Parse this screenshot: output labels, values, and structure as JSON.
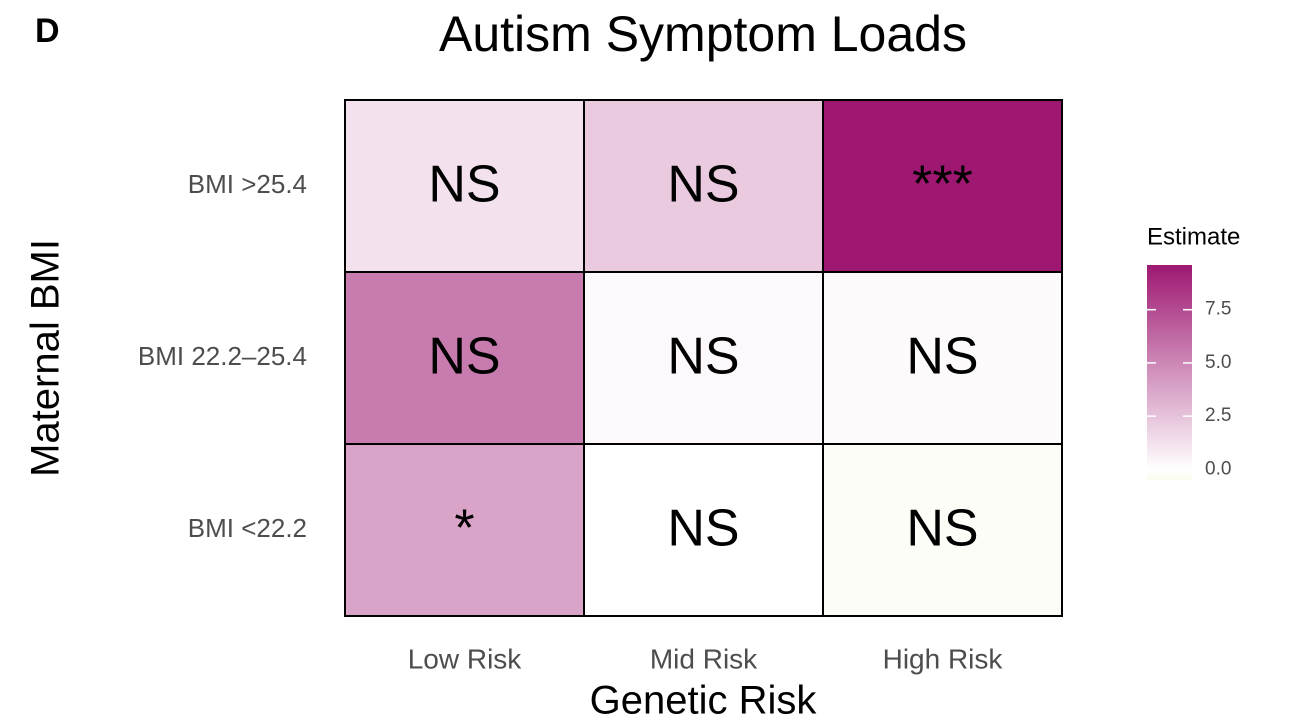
{
  "panel_label": "D",
  "chart_data": {
    "type": "heatmap",
    "title": "Autism Symptom Loads",
    "x_label": "Genetic Risk",
    "y_label": "Maternal BMI",
    "x_categories": [
      "Low Risk",
      "Mid Risk",
      "High Risk"
    ],
    "y_categories": [
      "BMI <22.2",
      "BMI 22.2–25.4",
      "BMI >25.4"
    ],
    "values": [
      [
        3.8,
        0.0,
        -0.2
      ],
      [
        5.5,
        0.3,
        0.2
      ],
      [
        1.2,
        2.2,
        9.6
      ]
    ],
    "labels": [
      [
        "*",
        "NS",
        "NS"
      ],
      [
        "NS",
        "NS",
        "NS"
      ],
      [
        "NS",
        "NS",
        "***"
      ]
    ],
    "legend_title": "Estimate",
    "colorbar_lim": [
      -0.5,
      9.6
    ],
    "colorbar_ticks": [
      {
        "value": 0,
        "label": "0.0"
      },
      2.5,
      {
        "value": 5,
        "label": "5.0"
      },
      7.5
    ],
    "colors": [
      "#fbfbee",
      "#ffffff",
      "#9e1872"
    ],
    "color_midpoint": 0
  }
}
